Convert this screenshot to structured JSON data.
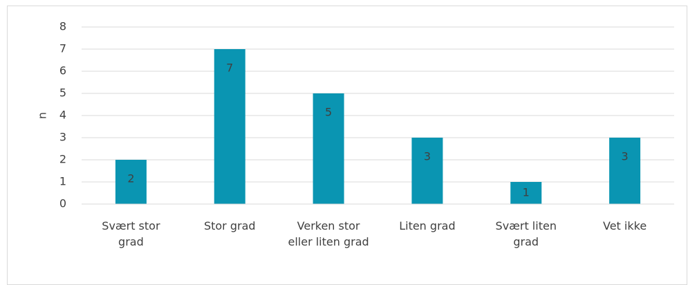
{
  "chart_data": {
    "type": "bar",
    "y_label": "n",
    "categories": [
      "Svært stor grad",
      "Stor grad",
      "Verken stor eller liten grad",
      "Liten grad",
      "Svært liten grad",
      "Vet ikke"
    ],
    "values": [
      2,
      7,
      5,
      3,
      1,
      3
    ],
    "color": "#0a95b2",
    "ylim": [
      0,
      8
    ],
    "yticks": [
      0,
      1,
      2,
      3,
      4,
      5,
      6,
      7,
      8
    ],
    "grid": true
  }
}
